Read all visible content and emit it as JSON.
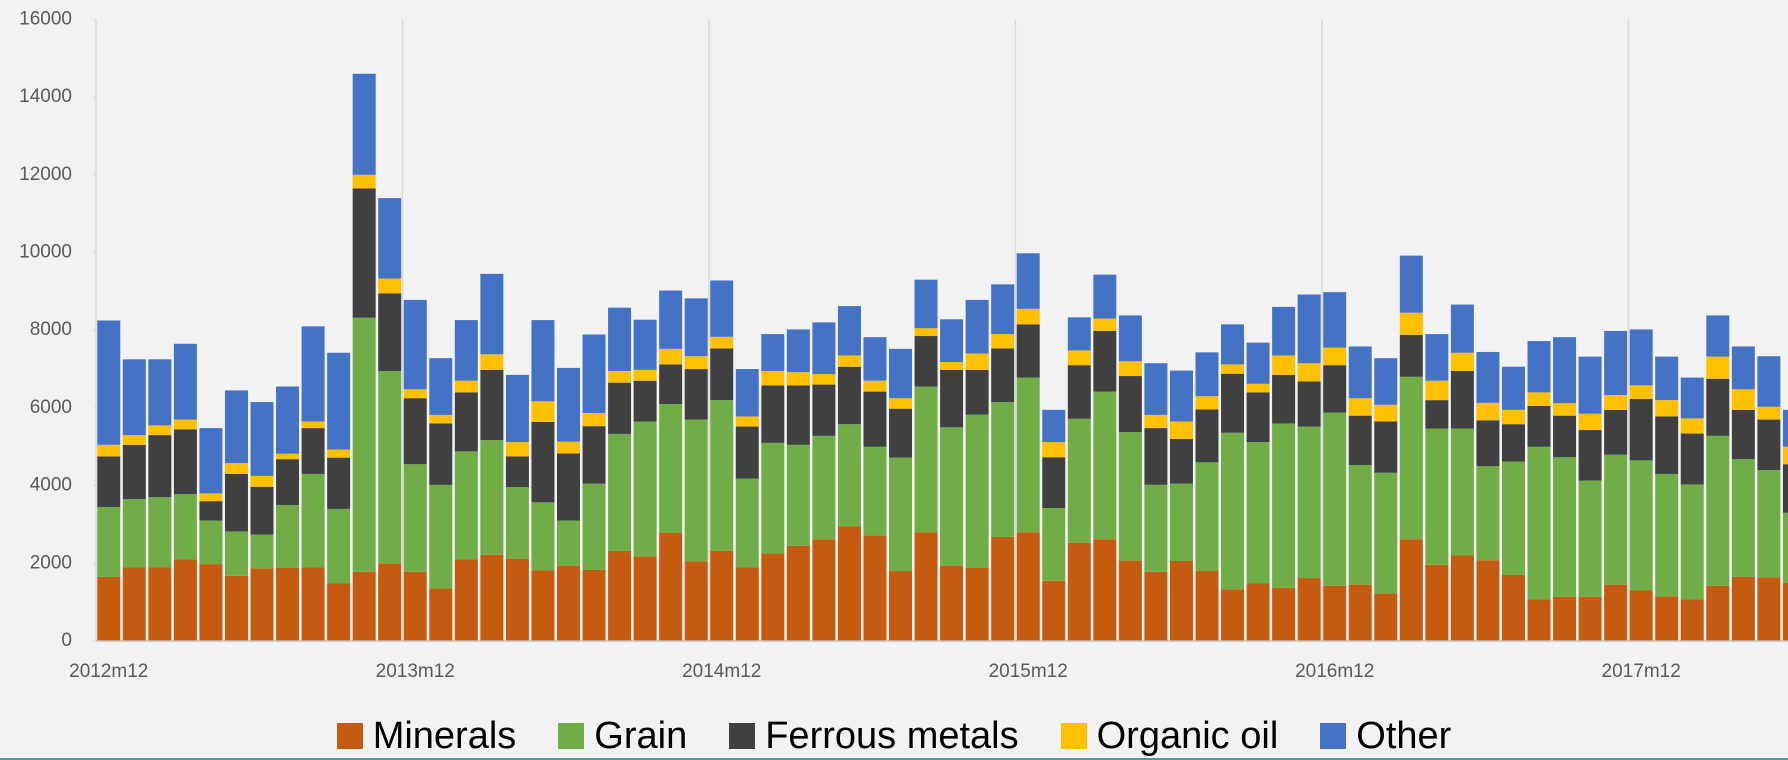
{
  "chart_data": {
    "type": "stacked_bar",
    "categories": [
      "2012m12",
      null,
      null,
      null,
      null,
      null,
      null,
      null,
      null,
      null,
      null,
      null,
      "2013m12",
      null,
      null,
      null,
      null,
      null,
      null,
      null,
      null,
      null,
      null,
      null,
      "2014m12",
      null,
      null,
      null,
      null,
      null,
      null,
      null,
      null,
      null,
      null,
      null,
      "2015m12",
      null,
      null,
      null,
      null,
      null,
      null,
      null,
      null,
      null,
      null,
      null,
      "2016m12",
      null,
      null,
      null,
      null,
      null,
      null,
      null,
      null,
      null,
      null,
      null,
      "2017m12",
      null,
      null,
      null,
      null,
      null,
      null
    ],
    "series": [
      {
        "name": "Minerals",
        "color": "#c55a11",
        "values": [
          1650,
          1900,
          1900,
          2100,
          1980,
          1680,
          1870,
          1880,
          1900,
          1480,
          1780,
          2000,
          1780,
          1350,
          2100,
          2220,
          2120,
          1820,
          1930,
          1830,
          2320,
          2180,
          2780,
          2050,
          2320,
          1900,
          2250,
          2450,
          2620,
          2950,
          2720,
          1800,
          2800,
          1930,
          1880,
          2680,
          2800,
          1550,
          2530,
          2620,
          2070,
          1780,
          2060,
          1800,
          1330,
          1480,
          1370,
          1620,
          1420,
          1450,
          1220,
          2620,
          1960,
          2200,
          2080,
          1700,
          1070,
          1140,
          1140,
          1450,
          1310,
          1150,
          1070,
          1420,
          1650,
          1640,
          1500
        ]
      },
      {
        "name": "Grain",
        "color": "#70ad47",
        "values": [
          1800,
          1750,
          1800,
          1680,
          1120,
          1140,
          870,
          1620,
          2400,
          1920,
          6540,
          4950,
          2770,
          2670,
          2780,
          2950,
          1840,
          1750,
          1170,
          2220,
          3010,
          3470,
          3320,
          3650,
          3880,
          2280,
          2850,
          2600,
          2660,
          2630,
          2280,
          2920,
          3750,
          3570,
          3950,
          3470,
          3980,
          1870,
          3190,
          3800,
          3310,
          2240,
          1990,
          2800,
          4030,
          3640,
          4230,
          3900,
          4460,
          3080,
          3110,
          4180,
          3510,
          3270,
          2420,
          2920,
          3930,
          3590,
          2990,
          3350,
          3340,
          3150,
          2960,
          3860,
          3030,
          2760,
          1800
        ]
      },
      {
        "name": "Ferrous metals",
        "color": "#404040",
        "values": [
          1300,
          1400,
          1600,
          1670,
          500,
          1480,
          1230,
          1180,
          1180,
          1320,
          3330,
          2000,
          1700,
          1580,
          1520,
          1810,
          790,
          2070,
          1730,
          1480,
          1320,
          1050,
          1020,
          1300,
          1330,
          1340,
          1480,
          1530,
          1320,
          1480,
          1420,
          1260,
          1300,
          1480,
          1150,
          1380,
          1370,
          1310,
          1380,
          1560,
          1440,
          1460,
          1150,
          1360,
          1520,
          1280,
          1250,
          1160,
          1220,
          1270,
          1320,
          1080,
          730,
          1480,
          1180,
          960,
          1050,
          1070,
          1300,
          1150,
          1580,
          1480,
          1310,
          1470,
          1270,
          1300,
          1250
        ]
      },
      {
        "name": "Organic oil",
        "color": "#ffc000",
        "values": [
          300,
          250,
          250,
          250,
          200,
          280,
          280,
          140,
          170,
          210,
          350,
          380,
          230,
          220,
          300,
          400,
          370,
          530,
          300,
          340,
          300,
          280,
          400,
          330,
          300,
          260,
          370,
          340,
          270,
          290,
          280,
          270,
          200,
          200,
          420,
          370,
          400,
          390,
          380,
          320,
          380,
          340,
          450,
          340,
          240,
          220,
          500,
          470,
          450,
          450,
          430,
          570,
          500,
          470,
          450,
          370,
          350,
          320,
          420,
          380,
          350,
          420,
          390,
          570,
          530,
          330,
          450
        ]
      },
      {
        "name": "Other",
        "color": "#4472c4",
        "values": [
          3200,
          1950,
          1700,
          1950,
          1680,
          1870,
          1900,
          1730,
          2450,
          2490,
          2600,
          2070,
          2300,
          1460,
          1560,
          2070,
          1730,
          2090,
          1900,
          2020,
          1630,
          1290,
          1500,
          1490,
          1450,
          1220,
          950,
          1100,
          1330,
          1270,
          1120,
          1270,
          1250,
          1100,
          1380,
          1280,
          1430,
          830,
          850,
          1130,
          1180,
          1330,
          1310,
          1130,
          1030,
          1060,
          1250,
          1770,
          1430,
          1330,
          1200,
          1470,
          1200,
          1240,
          1310,
          1110,
          1320,
          1700,
          1470,
          1650,
          1440,
          1120,
          1050,
          1060,
          1100,
          1300,
          950
        ]
      }
    ],
    "ylim": [
      0,
      16000
    ],
    "yticks": [
      0,
      2000,
      4000,
      6000,
      8000,
      10000,
      12000,
      14000,
      16000
    ],
    "legend": "bottom"
  }
}
